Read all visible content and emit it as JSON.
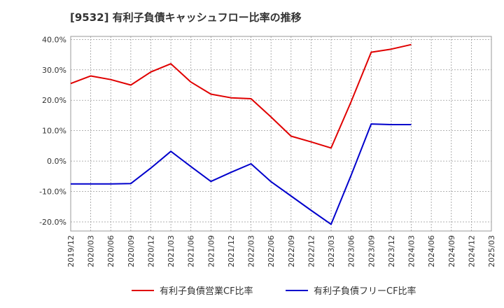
{
  "chart_data": {
    "type": "line",
    "title": "[9532]  有利子負債キャッシュフロー比率の推移",
    "x": [
      "2019/12",
      "2020/03",
      "2020/06",
      "2020/09",
      "2020/12",
      "2021/03",
      "2021/06",
      "2021/09",
      "2021/12",
      "2022/03",
      "2022/06",
      "2022/09",
      "2022/12",
      "2023/03",
      "2023/06",
      "2023/09",
      "2023/12",
      "2024/03",
      "2024/06",
      "2024/09",
      "2024/12",
      "2025/03"
    ],
    "y_ticks": [
      "40.0%",
      "30.0%",
      "20.0%",
      "10.0%",
      "0.0%",
      "-10.0%",
      "-20.0%"
    ],
    "ylim": [
      -23,
      41
    ],
    "grid": true,
    "legend_position": "bottom",
    "series": [
      {
        "name": "有利子負債営業CF比率",
        "color": "#e00000",
        "values": [
          25.5,
          28.0,
          26.8,
          25.0,
          29.3,
          32.0,
          26.0,
          22.0,
          20.8,
          20.5,
          14.5,
          8.2,
          6.3,
          4.3,
          19.6,
          35.8,
          36.8,
          38.3,
          null,
          null,
          null,
          null
        ]
      },
      {
        "name": "有利子負債フリーCF比率",
        "color": "#0000cc",
        "values": [
          -7.5,
          -7.5,
          -7.5,
          -7.4,
          -2.3,
          3.2,
          -1.8,
          -6.7,
          -3.7,
          -0.9,
          -6.8,
          -11.5,
          -16.2,
          -20.8,
          -4.6,
          12.2,
          12.0,
          12.0,
          null,
          null,
          null,
          null
        ]
      }
    ]
  }
}
